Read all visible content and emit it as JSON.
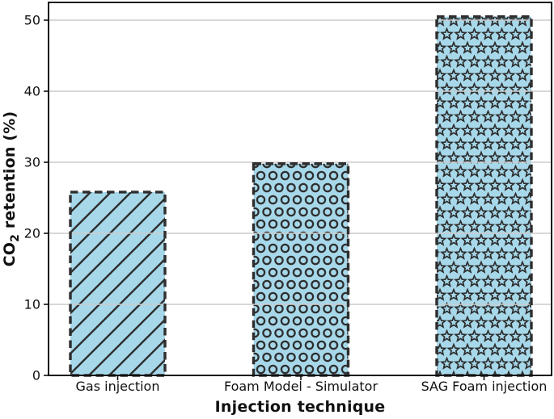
{
  "chart_data": {
    "type": "bar",
    "xlabel": "Injection technique",
    "ylabel": "CO2 retention (%)",
    "ylabel_parts": {
      "pre": "CO",
      "sub": "2",
      "post": " retention (%)"
    },
    "categories": [
      "Gas injection",
      "Foam Model - Simulator",
      "SAG Foam injection"
    ],
    "values": [
      25.8,
      29.8,
      50.5
    ],
    "yticks": [
      0,
      10,
      20,
      30,
      40,
      50
    ],
    "ylim": [
      0,
      52.5
    ],
    "grid": "horizontal, drawn above bars",
    "legend": "none",
    "hatches": [
      "diagonal-lines",
      "circles",
      "stars"
    ],
    "colors": {
      "bar_fill": "#a7d8ea",
      "edge": "#2e2e2e",
      "grid": "#cccccc",
      "axis": "#111111",
      "background": "#ffffff"
    }
  }
}
